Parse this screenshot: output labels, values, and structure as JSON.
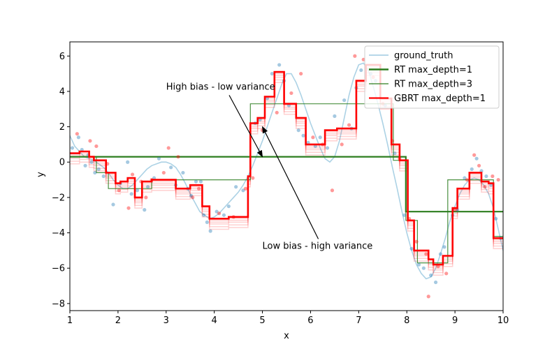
{
  "chart_data": {
    "type": "line",
    "xlabel": "x",
    "ylabel": "y",
    "xlim": [
      1,
      10
    ],
    "ylim": [
      -8.4,
      6.8
    ],
    "xticks": [
      "1",
      "2",
      "3",
      "4",
      "5",
      "6",
      "7",
      "8",
      "9",
      "10"
    ],
    "yticks": [
      "−8",
      "−6",
      "−4",
      "−2",
      "0",
      "2",
      "4",
      "6"
    ],
    "legend_position": "top-right",
    "legend": [
      {
        "label": "ground_truth",
        "color": "#9ecae1"
      },
      {
        "label": "RT max_depth=1",
        "color": "#2c7d1e"
      },
      {
        "label": "RT max_depth=3",
        "color": "#2c7d1e"
      },
      {
        "label": "GBRT max_depth=1",
        "color": "#ff0000"
      }
    ],
    "annotations": [
      {
        "text": "High bias - low variance",
        "xy": [
          5.0,
          0.3
        ],
        "xytext": [
          3.0,
          4.1
        ]
      },
      {
        "text": "Low bias - high variance",
        "xy": [
          5.0,
          2.0
        ],
        "xytext": [
          5.0,
          -4.9
        ]
      }
    ],
    "series": [
      {
        "name": "ground_truth",
        "color": "#9ecae1",
        "x": [
          1.0,
          1.1,
          1.2,
          1.3,
          1.4,
          1.5,
          1.6,
          1.7,
          1.8,
          1.9,
          2.0,
          2.1,
          2.2,
          2.3,
          2.4,
          2.5,
          2.6,
          2.7,
          2.8,
          2.9,
          3.0,
          3.1,
          3.2,
          3.3,
          3.4,
          3.5,
          3.6,
          3.7,
          3.8,
          3.9,
          4.0,
          4.1,
          4.2,
          4.3,
          4.4,
          4.5,
          4.6,
          4.7,
          4.8,
          4.9,
          5.0,
          5.1,
          5.2,
          5.3,
          5.4,
          5.5,
          5.6,
          5.7,
          5.8,
          5.9,
          6.0,
          6.1,
          6.2,
          6.3,
          6.4,
          6.5,
          6.6,
          6.7,
          6.8,
          6.9,
          7.0,
          7.1,
          7.2,
          7.3,
          7.4,
          7.5,
          7.6,
          7.7,
          7.8,
          7.9,
          8.0,
          8.1,
          8.2,
          8.3,
          8.4,
          8.5,
          8.6,
          8.7,
          8.8,
          8.9,
          9.0,
          9.1,
          9.2,
          9.3,
          9.4,
          9.5,
          9.6,
          9.7,
          9.8,
          9.9,
          10.0
        ],
        "y": [
          1.5,
          0.9,
          0.6,
          0.3,
          0.2,
          0.1,
          -0.1,
          -0.3,
          -0.6,
          -1.0,
          -1.3,
          -1.5,
          -1.5,
          -1.3,
          -1.0,
          -0.7,
          -0.4,
          -0.2,
          -0.1,
          0.0,
          0.0,
          -0.1,
          -0.3,
          -0.7,
          -1.2,
          -1.8,
          -2.3,
          -2.8,
          -3.0,
          -3.2,
          -3.1,
          -2.9,
          -2.6,
          -2.3,
          -2.0,
          -1.7,
          -1.3,
          -0.8,
          -0.2,
          0.5,
          1.2,
          2.0,
          2.8,
          3.6,
          4.4,
          5.0,
          5.0,
          4.5,
          3.8,
          3.0,
          2.2,
          1.5,
          0.8,
          0.2,
          0.0,
          0.3,
          1.2,
          2.5,
          3.8,
          4.8,
          5.5,
          5.6,
          5.2,
          4.3,
          3.3,
          2.2,
          1.0,
          -0.3,
          -1.5,
          -2.8,
          -4.0,
          -5.0,
          -5.8,
          -6.3,
          -6.6,
          -6.5,
          -6.0,
          -5.2,
          -4.3,
          -3.3,
          -2.5,
          -1.8,
          -1.3,
          -1.0,
          -0.9,
          -1.0,
          -1.3,
          -1.8,
          -2.6,
          -3.8,
          -5.0
        ]
      },
      {
        "name": "RT max_depth=1",
        "color": "#2c7d1e",
        "x": [
          1.0,
          7.98,
          7.98,
          10.0
        ],
        "y": [
          0.3,
          0.3,
          -2.8,
          -2.8
        ]
      },
      {
        "name": "RT max_depth=3",
        "color": "#2c7d1e",
        "x": [
          1.0,
          1.55,
          1.55,
          1.8,
          1.8,
          2.7,
          2.7,
          4.75,
          4.75,
          7.72,
          7.72,
          7.98,
          7.98,
          8.22,
          8.22,
          8.85,
          8.85,
          9.8,
          9.8,
          10.0
        ],
        "y": [
          0.3,
          0.3,
          -0.6,
          -0.6,
          -1.5,
          -1.5,
          -1.0,
          -1.0,
          3.3,
          3.3,
          0.1,
          0.1,
          -3.3,
          -3.3,
          -5.7,
          -5.7,
          -1.0,
          -1.0,
          -4.2,
          -4.2
        ]
      },
      {
        "name": "GBRT max_depth=1",
        "color": "#ff0000",
        "x": [
          1.0,
          1.2,
          1.2,
          1.4,
          1.4,
          1.5,
          1.5,
          1.75,
          1.75,
          1.95,
          1.95,
          2.05,
          2.05,
          2.2,
          2.2,
          2.35,
          2.35,
          2.5,
          2.5,
          2.7,
          2.7,
          3.2,
          3.2,
          3.5,
          3.5,
          3.75,
          3.75,
          3.9,
          3.9,
          4.3,
          4.3,
          4.7,
          4.7,
          4.75,
          4.75,
          4.9,
          4.9,
          5.05,
          5.05,
          5.25,
          5.25,
          5.45,
          5.45,
          5.7,
          5.7,
          5.9,
          5.9,
          6.3,
          6.3,
          6.55,
          6.55,
          6.95,
          6.95,
          7.15,
          7.15,
          7.45,
          7.45,
          7.68,
          7.68,
          7.85,
          7.85,
          8.02,
          8.02,
          8.15,
          8.15,
          8.45,
          8.45,
          8.55,
          8.55,
          8.75,
          8.75,
          8.95,
          8.95,
          9.05,
          9.05,
          9.3,
          9.3,
          9.55,
          9.55,
          9.7,
          9.7,
          9.8,
          9.8,
          10.0
        ],
        "y": [
          0.5,
          0.5,
          0.6,
          0.6,
          0.3,
          0.3,
          0.1,
          0.1,
          -0.6,
          -0.6,
          -1.2,
          -1.2,
          -1.1,
          -1.1,
          -0.9,
          -0.9,
          -2.0,
          -2.0,
          -1.1,
          -1.1,
          -1.0,
          -1.0,
          -1.5,
          -1.5,
          -1.3,
          -1.3,
          -2.5,
          -2.5,
          -3.2,
          -3.2,
          -3.1,
          -3.1,
          -0.8,
          -0.8,
          2.2,
          2.2,
          2.5,
          2.5,
          3.7,
          3.7,
          5.1,
          5.1,
          3.3,
          3.3,
          2.5,
          2.5,
          1.0,
          1.0,
          1.8,
          1.8,
          1.9,
          1.9,
          4.6,
          4.6,
          5.5,
          5.5,
          3.6,
          3.6,
          1.0,
          1.0,
          0.1,
          0.1,
          -3.3,
          -3.3,
          -5.0,
          -5.0,
          -5.5,
          -5.5,
          -5.8,
          -5.8,
          -5.3,
          -5.3,
          -2.6,
          -2.6,
          -1.5,
          -1.5,
          -0.6,
          -0.6,
          -1.1,
          -1.1,
          -1.2,
          -1.2,
          -4.3,
          -4.3
        ]
      }
    ],
    "gbrt_stage_offsets": [
      -0.6,
      -0.45,
      -0.3,
      -0.2,
      -0.1
    ],
    "scatter_blue": {
      "color": "#1f77b4",
      "x": [
        1.05,
        1.18,
        1.25,
        1.32,
        1.38,
        1.45,
        1.52,
        1.6,
        1.7,
        1.9,
        2.05,
        2.2,
        2.28,
        2.4,
        2.55,
        2.62,
        2.75,
        2.85,
        3.1,
        3.2,
        3.35,
        3.45,
        3.52,
        3.62,
        3.72,
        3.78,
        3.85,
        3.92,
        4.05,
        4.2,
        4.3,
        4.45,
        4.6,
        4.85,
        4.95,
        5.1,
        5.2,
        5.35,
        5.45,
        5.55,
        5.75,
        5.85,
        5.95,
        6.1,
        6.2,
        6.35,
        6.5,
        6.7,
        6.85,
        6.95,
        7.05,
        7.25,
        7.35,
        7.55,
        7.75,
        7.95,
        8.1,
        8.25,
        8.35,
        8.5,
        8.6,
        8.7,
        8.78,
        8.95,
        9.05,
        9.2,
        9.35,
        9.45,
        9.55,
        9.65,
        9.75,
        9.85,
        9.95
      ],
      "y": [
        0.8,
        1.4,
        0.7,
        -0.2,
        0.4,
        0.0,
        -0.6,
        -0.4,
        -0.8,
        -2.4,
        -1.2,
        0.0,
        -1.8,
        -1.6,
        -2.7,
        -1.4,
        -0.9,
        0.2,
        -0.3,
        -1.3,
        -0.6,
        -1.5,
        -1.9,
        -1.1,
        -1.1,
        -3.0,
        -3.4,
        -3.9,
        -2.8,
        -3.0,
        -2.5,
        -1.4,
        -1.6,
        2.2,
        2.4,
        3.6,
        5.0,
        5.5,
        4.6,
        3.2,
        1.8,
        1.5,
        1.1,
        0.9,
        1.4,
        0.8,
        2.6,
        3.5,
        1.9,
        4.2,
        5.2,
        5.0,
        4.6,
        3.2,
        0.5,
        -3.0,
        -4.9,
        -5.8,
        -6.0,
        -6.4,
        -6.8,
        -5.2,
        -4.8,
        -3.0,
        -2.7,
        -0.9,
        -0.4,
        0.2,
        -0.5,
        -0.8,
        -1.3,
        -3.2,
        -4.3
      ]
    },
    "scatter_red": {
      "color": "#ff0000",
      "x": [
        1.15,
        1.42,
        1.55,
        1.78,
        2.02,
        2.22,
        2.3,
        2.48,
        2.58,
        2.7,
        2.95,
        3.05,
        3.25,
        3.55,
        3.68,
        4.1,
        4.4,
        4.65,
        4.8,
        5.0,
        5.3,
        5.6,
        5.8,
        6.05,
        6.25,
        6.45,
        6.65,
        6.8,
        6.92,
        7.1,
        7.3,
        7.5,
        7.7,
        7.85,
        8.05,
        8.2,
        8.4,
        8.45,
        8.65,
        8.82,
        9.0,
        9.25,
        9.4,
        9.5,
        9.62,
        9.78,
        9.9
      ],
      "y": [
        1.6,
        1.2,
        0.9,
        -0.1,
        -1.6,
        -2.6,
        -0.7,
        -1.1,
        -2.0,
        -1.0,
        -0.6,
        0.8,
        0.3,
        -2.0,
        -1.5,
        -2.9,
        -3.1,
        -1.5,
        -0.9,
        1.8,
        2.8,
        3.9,
        5.0,
        1.4,
        1.0,
        -1.6,
        1.0,
        2.1,
        6.0,
        5.8,
        4.8,
        3.3,
        1.2,
        0.2,
        -3.2,
        -4.5,
        -5.2,
        -7.6,
        -5.9,
        -6.3,
        -2.7,
        -1.0,
        0.4,
        -0.2,
        -1.4,
        -0.8,
        -1.0
      ]
    }
  }
}
